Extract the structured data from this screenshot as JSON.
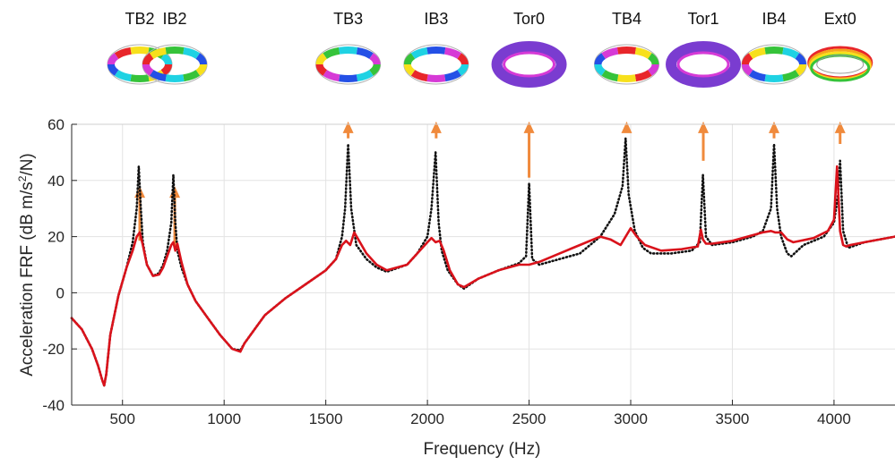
{
  "chart_data": {
    "type": "line",
    "xlabel": "Frequency (Hz)",
    "ylabel_main": "Acceleration FRF (dB m/s",
    "ylabel_sup": "2",
    "ylabel_tail": "/N)",
    "xlim": [
      250,
      4300
    ],
    "ylim": [
      -40,
      60
    ],
    "x_ticks": [
      500,
      1000,
      1500,
      2000,
      2500,
      3000,
      3500,
      4000
    ],
    "y_ticks": [
      -40,
      -20,
      0,
      20,
      40,
      60
    ],
    "grid": true,
    "series": [
      {
        "style": "dotted",
        "color": "#111111",
        "x": [
          250,
          300,
          350,
          380,
          400,
          410,
          420,
          440,
          480,
          520,
          550,
          570,
          580,
          590,
          600,
          620,
          650,
          680,
          700,
          720,
          740,
          750,
          760,
          770,
          790,
          820,
          860,
          920,
          980,
          1040,
          1080,
          1100,
          1150,
          1200,
          1300,
          1400,
          1500,
          1550,
          1580,
          1595,
          1610,
          1625,
          1650,
          1700,
          1750,
          1800,
          1900,
          1950,
          2000,
          2020,
          2040,
          2055,
          2070,
          2100,
          2150,
          2180,
          2250,
          2350,
          2450,
          2485,
          2500,
          2515,
          2550,
          2650,
          2750,
          2850,
          2920,
          2960,
          2975,
          2990,
          3020,
          3060,
          3100,
          3200,
          3300,
          3340,
          3355,
          3370,
          3400,
          3500,
          3600,
          3650,
          3690,
          3705,
          3720,
          3740,
          3770,
          3790,
          3850,
          3950,
          4000,
          4020,
          4030,
          4045,
          4070,
          4150,
          4300
        ],
        "y": [
          -9,
          -13,
          -20,
          -26,
          -31,
          -33,
          -29,
          -15,
          -1,
          9,
          18,
          30,
          45,
          30,
          18,
          10,
          6,
          7,
          10,
          15,
          25,
          42,
          25,
          15,
          9,
          3,
          -3,
          -9,
          -15,
          -20,
          -20.5,
          -18,
          -13,
          -8,
          -2,
          3,
          8,
          12,
          20,
          30,
          53,
          30,
          17,
          12,
          9,
          7.5,
          10,
          14,
          20,
          30,
          50,
          25,
          15,
          8,
          3,
          1.5,
          5,
          8,
          10.5,
          13,
          39,
          12,
          10,
          12,
          14,
          20,
          28,
          38,
          55,
          35,
          22,
          16,
          14,
          14,
          15,
          18,
          42,
          20,
          17,
          18,
          20,
          22,
          30,
          53,
          30,
          20,
          14,
          13,
          17,
          20,
          25,
          35,
          47,
          22,
          16,
          18,
          20
        ]
      },
      {
        "style": "solid",
        "color": "#d9121b",
        "x": [
          250,
          300,
          350,
          380,
          400,
          410,
          420,
          440,
          480,
          520,
          550,
          570,
          585,
          600,
          620,
          650,
          680,
          700,
          720,
          740,
          750,
          760,
          770,
          790,
          820,
          860,
          920,
          980,
          1040,
          1080,
          1100,
          1150,
          1200,
          1300,
          1400,
          1500,
          1550,
          1580,
          1600,
          1620,
          1640,
          1660,
          1700,
          1750,
          1800,
          1900,
          1950,
          2000,
          2020,
          2040,
          2060,
          2080,
          2110,
          2150,
          2180,
          2250,
          2350,
          2450,
          2500,
          2550,
          2650,
          2750,
          2850,
          2900,
          2950,
          3000,
          3030,
          3070,
          3150,
          3250,
          3330,
          3345,
          3355,
          3370,
          3400,
          3500,
          3600,
          3650,
          3690,
          3710,
          3740,
          3770,
          3800,
          3900,
          3970,
          4000,
          4015,
          4030,
          4045,
          4060,
          4080,
          4150,
          4300
        ],
        "y": [
          -9,
          -13,
          -20,
          -26,
          -31,
          -33,
          -29,
          -15,
          -1,
          9,
          15,
          20,
          21.5,
          17,
          10,
          6,
          6.5,
          9,
          13,
          17,
          18,
          15,
          17.5,
          11,
          3,
          -3,
          -9,
          -15,
          -20,
          -21,
          -18,
          -13,
          -8,
          -2,
          3,
          8,
          12,
          17,
          18.5,
          17,
          21.5,
          19,
          14,
          10,
          8,
          10,
          14,
          18,
          19.5,
          18,
          18.5,
          15,
          8,
          3,
          2,
          5,
          8,
          10,
          10,
          11,
          14,
          17,
          20,
          19,
          17,
          23,
          20,
          17,
          15,
          15.5,
          16.5,
          22.5,
          19,
          17.5,
          17.5,
          18.5,
          20.5,
          21.5,
          22,
          21.5,
          21.5,
          19,
          18,
          19.5,
          22,
          26,
          45,
          22,
          17,
          16.5,
          17,
          18,
          20
        ]
      }
    ],
    "annotations": [
      {
        "label": "TB2",
        "x": 585,
        "arrow_y": [
          18.5,
          38
        ]
      },
      {
        "label": "IB2",
        "x": 757,
        "arrow_y": [
          16,
          38
        ]
      },
      {
        "label": "TB3",
        "x": 1610,
        "arrow_y": [
          55,
          61
        ]
      },
      {
        "label": "IB3",
        "x": 2043,
        "arrow_y": [
          55,
          61
        ]
      },
      {
        "label": "Tor0",
        "x": 2500,
        "arrow_y": [
          41,
          61
        ]
      },
      {
        "label": "TB4",
        "x": 2980,
        "arrow_y": [
          57,
          61
        ]
      },
      {
        "label": "Tor1",
        "x": 3357,
        "arrow_y": [
          47,
          61
        ]
      },
      {
        "label": "IB4",
        "x": 3705,
        "arrow_y": [
          55,
          61
        ]
      },
      {
        "label": "Ext0",
        "x": 4030,
        "arrow_y": [
          53,
          61
        ]
      }
    ],
    "colors": {
      "dotted_series": "#111111",
      "solid_series": "#d9121b",
      "arrow": "#f08a3c",
      "grid": "#e3e3e3",
      "axis": "#262626"
    }
  }
}
